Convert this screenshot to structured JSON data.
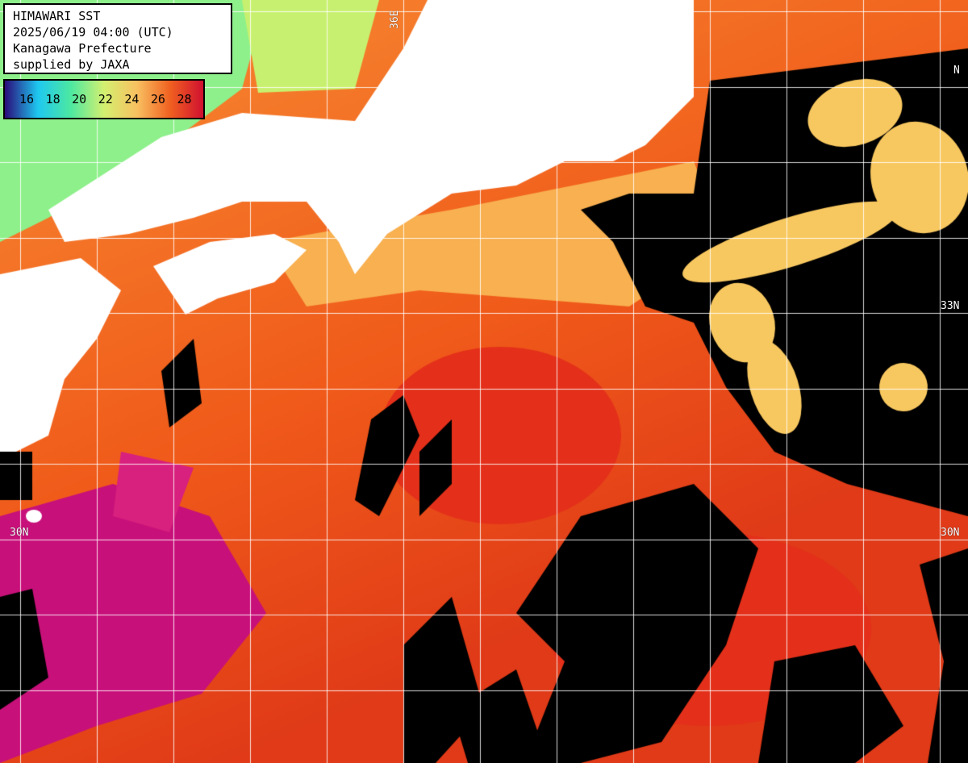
{
  "header": {
    "line1": "HIMAWARI SST",
    "line2": "2025/06/19 04:00 (UTC)",
    "line3": "Kanagawa Prefecture",
    "line4": "supplied by JAXA"
  },
  "legend": {
    "ticks": [
      "16",
      "18",
      "20",
      "22",
      "24",
      "26",
      "28"
    ],
    "colors": [
      "#2a0a7a",
      "#1ec8f0",
      "#4de8a0",
      "#d4f070",
      "#f8c060",
      "#f06020",
      "#d01030"
    ]
  },
  "grid_labels": {
    "lat_33_right": "33N",
    "lat_30_left": "30N",
    "lat_30_right": "30N",
    "lat_top_right": "N",
    "lon_top": "36E"
  },
  "colors": {
    "land": "#ffffff",
    "cloud": "#000000",
    "grid": "#ffffff"
  }
}
